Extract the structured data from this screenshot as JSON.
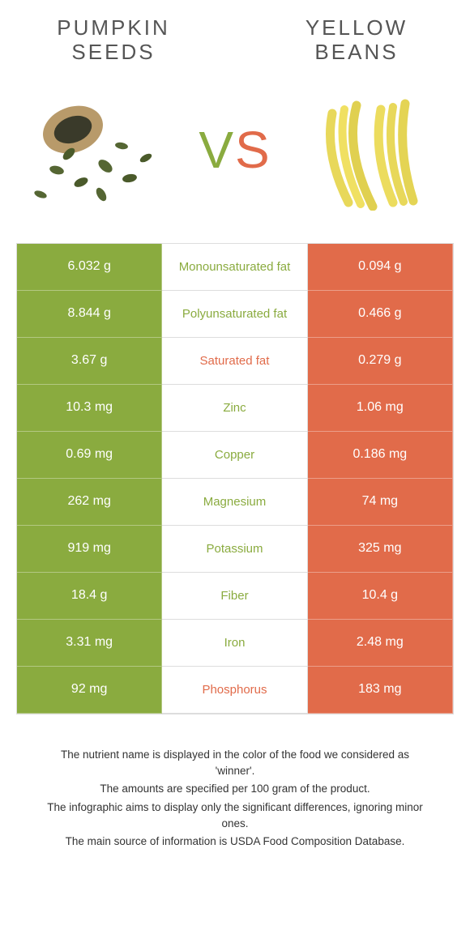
{
  "foods": {
    "left": {
      "name": "PUMPKIN\nSEEDS",
      "color": "#8aab3f",
      "image": "pumpkin-seeds"
    },
    "right": {
      "name": "YELLOW\nBEANS",
      "color": "#e16b4a",
      "image": "yellow-beans"
    }
  },
  "vs_label": "VS",
  "nutrients": [
    {
      "label": "Monounsaturated fat",
      "left": "6.032 g",
      "right": "0.094 g",
      "winner": "left"
    },
    {
      "label": "Polyunsaturated fat",
      "left": "8.844 g",
      "right": "0.466 g",
      "winner": "left"
    },
    {
      "label": "Saturated fat",
      "left": "3.67 g",
      "right": "0.279 g",
      "winner": "right"
    },
    {
      "label": "Zinc",
      "left": "10.3 mg",
      "right": "1.06 mg",
      "winner": "left"
    },
    {
      "label": "Copper",
      "left": "0.69 mg",
      "right": "0.186 mg",
      "winner": "left"
    },
    {
      "label": "Magnesium",
      "left": "262 mg",
      "right": "74 mg",
      "winner": "left"
    },
    {
      "label": "Potassium",
      "left": "919 mg",
      "right": "325 mg",
      "winner": "left"
    },
    {
      "label": "Fiber",
      "left": "18.4 g",
      "right": "10.4 g",
      "winner": "left"
    },
    {
      "label": "Iron",
      "left": "3.31 mg",
      "right": "2.48 mg",
      "winner": "left"
    },
    {
      "label": "Phosphorus",
      "left": "92 mg",
      "right": "183 mg",
      "winner": "right"
    }
  ],
  "left_bg": "#8aab3f",
  "right_bg": "#e16b4a",
  "mid_bg": "#ffffff",
  "border_color": "#dddddd",
  "footer_lines": [
    "The nutrient name is displayed in the color of the food we considered as 'winner'.",
    "The amounts are specified per 100 gram of the product.",
    "The infographic aims to display only the significant differences, ignoring minor ones.",
    "The main source of information is USDA Food Composition Database."
  ]
}
